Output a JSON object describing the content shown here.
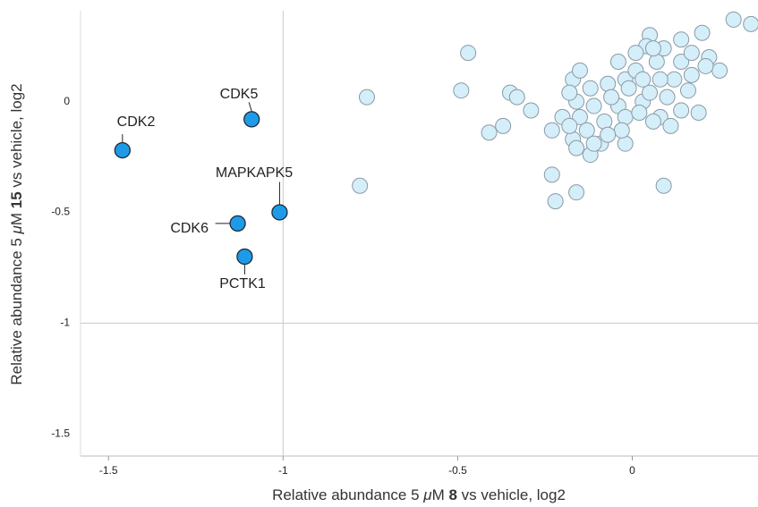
{
  "chart_data": {
    "type": "scatter",
    "xlabel": [
      "Relative abundance 5 ",
      "μ",
      "M ",
      "8",
      " vs vehicle, log2"
    ],
    "ylabel": [
      "Relative abundance 5 ",
      "μ",
      "M ",
      "15",
      " vs vehicle, log2"
    ],
    "xlim": [
      -1.58,
      0.36
    ],
    "ylim": [
      -1.6,
      0.41
    ],
    "xticks": [
      -1.5,
      -1,
      -0.5,
      0
    ],
    "yticks": [
      -1.5,
      -1,
      -0.5,
      0
    ],
    "reference_lines": {
      "x": -1,
      "y": -1
    },
    "series": [
      {
        "name": "other",
        "color": "#d4eefa",
        "x": [
          -0.47,
          -0.76,
          -0.78,
          -0.49,
          -0.41,
          -0.37,
          -0.35,
          -0.33,
          -0.29,
          -0.23,
          -0.23,
          -0.22,
          -0.16,
          0.09,
          0.29,
          0.34,
          0.2,
          0.25,
          0.22,
          0.19,
          0.14,
          0.16,
          0.05,
          0.04,
          0.14,
          0.09,
          -0.02,
          -0.09,
          -0.12,
          -0.02,
          -0.04,
          -0.17,
          -0.15,
          -0.12,
          -0.07,
          0.01,
          0.07,
          0.12,
          0.03,
          0.08,
          -0.02,
          -0.08,
          -0.13,
          -0.2,
          -0.17,
          -0.15,
          -0.04,
          0.01,
          0.1,
          0.05,
          -0.01,
          -0.06,
          -0.11,
          -0.16,
          -0.18,
          0.14,
          0.17,
          0.21,
          0.11,
          0.06,
          0.02,
          -0.03,
          -0.07,
          -0.11,
          -0.16,
          -0.18,
          0.03,
          0.08,
          0.17,
          0.06
        ],
        "y": [
          0.22,
          0.02,
          -0.38,
          0.05,
          -0.14,
          -0.11,
          0.04,
          0.02,
          -0.04,
          -0.13,
          -0.33,
          -0.45,
          -0.41,
          -0.38,
          0.37,
          0.35,
          0.31,
          0.14,
          0.2,
          -0.05,
          -0.04,
          0.05,
          0.3,
          0.25,
          0.28,
          0.24,
          0.1,
          -0.19,
          -0.24,
          -0.19,
          -0.02,
          -0.17,
          -0.07,
          0.06,
          0.08,
          0.14,
          0.18,
          0.1,
          0,
          -0.07,
          -0.07,
          -0.09,
          -0.13,
          -0.07,
          0.1,
          0.14,
          0.18,
          0.22,
          0.02,
          0.04,
          0.06,
          0.02,
          -0.02,
          0,
          0.04,
          0.18,
          0.12,
          0.16,
          -0.11,
          -0.09,
          -0.05,
          -0.13,
          -0.15,
          -0.19,
          -0.21,
          -0.11,
          0.1,
          0.1,
          0.22,
          0.24
        ]
      },
      {
        "name": "highlighted",
        "color": "#1e9be8",
        "labels": [
          "CDK2",
          "CDK5",
          "MAPKAPK5",
          "CDK6",
          "PCTK1"
        ],
        "x": [
          -1.46,
          -1.09,
          -1.01,
          -1.13,
          -1.11
        ],
        "y": [
          -0.22,
          -0.08,
          -0.5,
          -0.55,
          -0.7
        ]
      }
    ]
  }
}
